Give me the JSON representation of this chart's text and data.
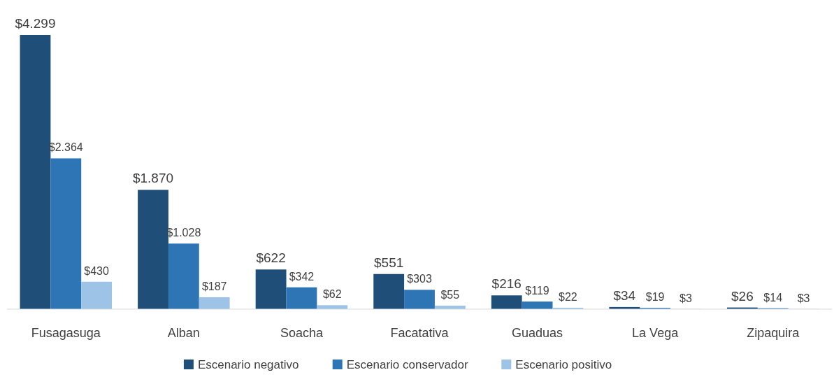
{
  "chart_data": {
    "type": "bar",
    "categories": [
      "Fusagasuga",
      "Alban",
      "Soacha",
      "Facatativa",
      "Guaduas",
      "La Vega",
      "Zipaquira"
    ],
    "series": [
      {
        "name": "Escenario negativo",
        "color": "#1f4e79",
        "values": [
          4299,
          1870,
          622,
          551,
          216,
          34,
          26
        ],
        "value_labels": [
          "$4.299",
          "$1.870",
          "$622",
          "$551",
          "$216",
          "$34",
          "$26"
        ]
      },
      {
        "name": "Escenario conservador",
        "color": "#2e75b6",
        "values": [
          2364,
          1028,
          342,
          303,
          119,
          19,
          14
        ],
        "value_labels": [
          "$2.364",
          "$1.028",
          "$342",
          "$303",
          "$119",
          "$19",
          "$14"
        ]
      },
      {
        "name": "Escenario positivo",
        "color": "#9dc3e6",
        "values": [
          430,
          187,
          62,
          55,
          22,
          3,
          3
        ],
        "value_labels": [
          "$430",
          "$187",
          "$62",
          "$55",
          "$22",
          "$3",
          "$3"
        ]
      }
    ],
    "legend": "bottom",
    "tick_labels": "x"
  }
}
